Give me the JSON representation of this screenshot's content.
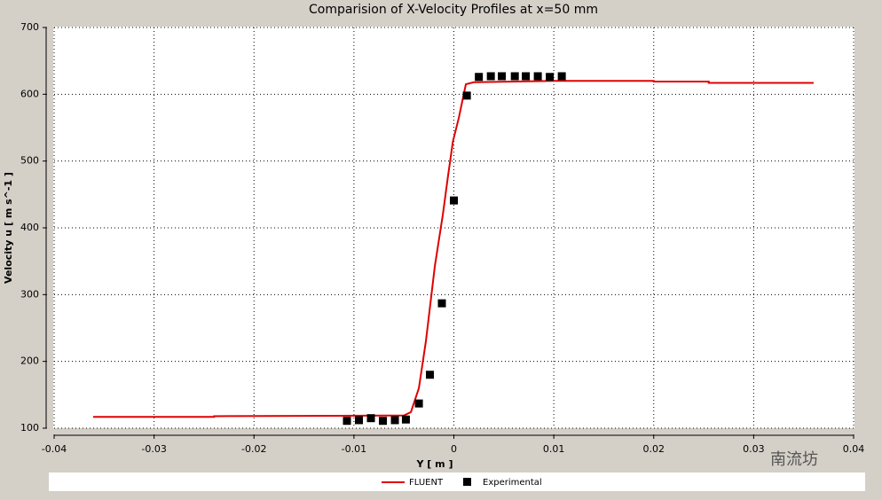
{
  "chart_data": {
    "type": "line",
    "title": "Comparision of X-Velocity Profiles at x=50 mm",
    "x_label": "Y [ m ]",
    "y_label": "Velocity u [ m s^-1 ]",
    "xlim": [
      -0.04,
      0.04
    ],
    "xticks": [
      -0.04,
      -0.03,
      -0.02,
      -0.01,
      0,
      0.01,
      0.02,
      0.03,
      0.04
    ],
    "ylim": [
      100,
      700
    ],
    "yticks": [
      100,
      200,
      300,
      400,
      500,
      600,
      700
    ],
    "grid": true,
    "legend": "bottom",
    "watermark": "南流坊",
    "series": [
      {
        "name": "FLUENT",
        "color": "#e00000",
        "mode": "line",
        "x": [
          -0.0361,
          -0.024,
          -0.024,
          -0.005,
          -0.0043,
          -0.0035,
          -0.0028,
          -0.0019,
          -0.0011,
          -0.0006,
          -0.0001,
          0.0005,
          0.0012,
          0.002,
          0.01,
          0.02,
          0.02,
          0.0255,
          0.0255,
          0.036
        ],
        "values": [
          117,
          117,
          118,
          119,
          124,
          160,
          230,
          343,
          420,
          476,
          529,
          565,
          615,
          618,
          620,
          620,
          619,
          619,
          617,
          617
        ]
      },
      {
        "name": "Experimental",
        "color": "#000000",
        "mode": "marker",
        "x": [
          -0.0107,
          -0.0095,
          -0.0083,
          -0.0071,
          -0.0059,
          -0.0048,
          -0.0035,
          -0.0024,
          -0.0012,
          0.0,
          0.0013,
          0.0025,
          0.0037,
          0.0048,
          0.0061,
          0.0072,
          0.0084,
          0.0096,
          0.0108
        ],
        "values": [
          111,
          112,
          115,
          111,
          112,
          113,
          137,
          180,
          287,
          441,
          598,
          626,
          627,
          627,
          627,
          627,
          627,
          626,
          627
        ]
      }
    ]
  }
}
